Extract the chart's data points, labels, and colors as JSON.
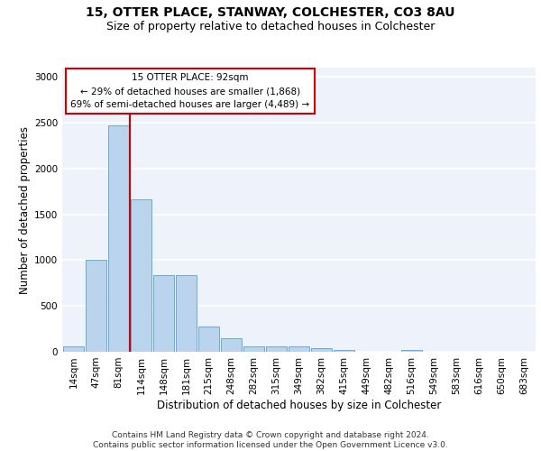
{
  "title1": "15, OTTER PLACE, STANWAY, COLCHESTER, CO3 8AU",
  "title2": "Size of property relative to detached houses in Colchester",
  "xlabel": "Distribution of detached houses by size in Colchester",
  "ylabel": "Number of detached properties",
  "categories": [
    "14sqm",
    "47sqm",
    "81sqm",
    "114sqm",
    "148sqm",
    "181sqm",
    "215sqm",
    "248sqm",
    "282sqm",
    "315sqm",
    "349sqm",
    "382sqm",
    "415sqm",
    "449sqm",
    "482sqm",
    "516sqm",
    "549sqm",
    "583sqm",
    "616sqm",
    "650sqm",
    "683sqm"
  ],
  "values": [
    55,
    1000,
    2470,
    1660,
    840,
    840,
    280,
    145,
    55,
    55,
    55,
    35,
    20,
    0,
    0,
    20,
    0,
    0,
    0,
    0,
    0
  ],
  "bar_color": "#bad4ee",
  "bar_edge_color": "#6aaad4",
  "vline_color": "#cc0000",
  "annotation_text": "15 OTTER PLACE: 92sqm\n← 29% of detached houses are smaller (1,868)\n69% of semi-detached houses are larger (4,489) →",
  "annotation_box_color": "#ffffff",
  "annotation_edge_color": "#cc0000",
  "ylim": [
    0,
    3100
  ],
  "background_color": "#edf2fb",
  "grid_color": "#ffffff",
  "footer_text": "Contains HM Land Registry data © Crown copyright and database right 2024.\nContains public sector information licensed under the Open Government Licence v3.0.",
  "title1_fontsize": 10,
  "title2_fontsize": 9,
  "xlabel_fontsize": 8.5,
  "ylabel_fontsize": 8.5,
  "tick_fontsize": 7.5,
  "footer_fontsize": 6.5
}
